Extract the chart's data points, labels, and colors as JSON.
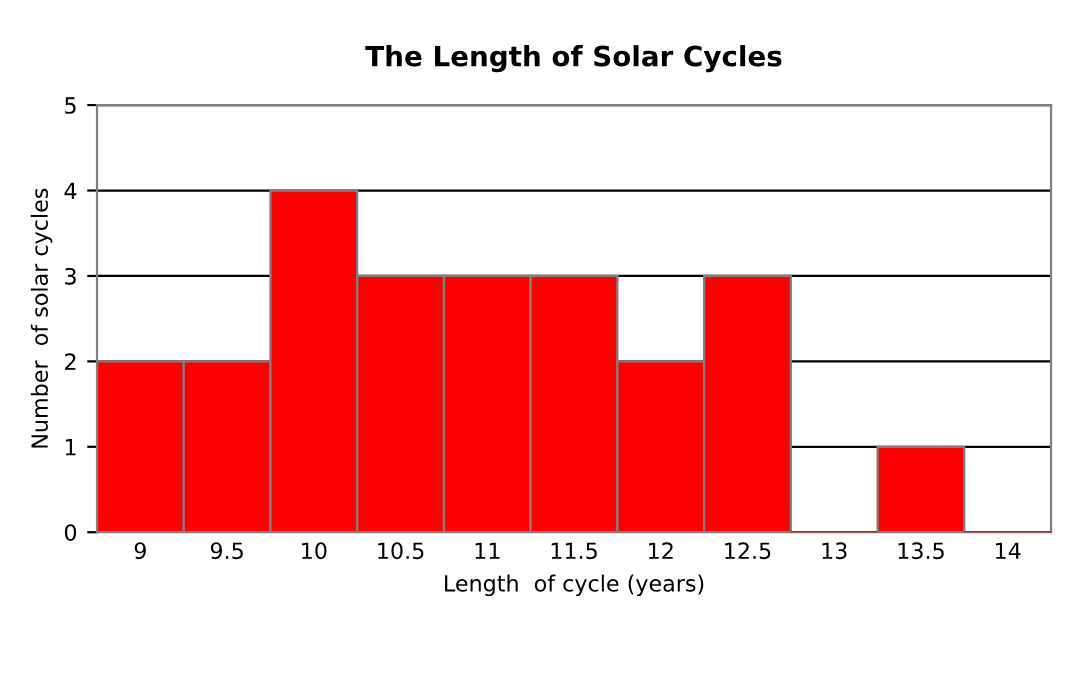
{
  "chart_data": {
    "type": "bar",
    "title": "The Length of Solar Cycles",
    "xlabel": "Length  of cycle (years)",
    "ylabel": "Number  of solar cycles",
    "categories": [
      "9",
      "9.5",
      "10",
      "10.5",
      "11",
      "11.5",
      "12",
      "12.5",
      "13",
      "13.5",
      "14"
    ],
    "values": [
      2,
      2,
      4,
      3,
      3,
      3,
      2,
      3,
      0,
      1,
      0
    ],
    "color": "#ff0000",
    "ylim": [
      0,
      5
    ],
    "yticks": [
      0,
      1,
      2,
      3,
      4,
      5
    ],
    "grid": "y"
  }
}
